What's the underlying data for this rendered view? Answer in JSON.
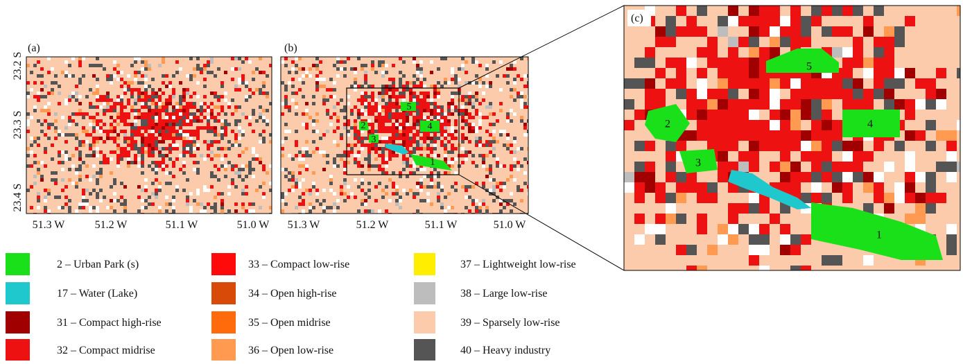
{
  "panels": [
    {
      "label": "(a)",
      "x_ticks": [
        "51.3 W",
        "51.2 W",
        "51.1 W",
        "51.0 W"
      ],
      "y_ticks": [
        "23.2 S",
        "23.3 S",
        "23.4 S"
      ]
    },
    {
      "label": "(b)",
      "x_ticks": [
        "51.3 W",
        "51.2 W",
        "51.1 W",
        "51.0 W"
      ],
      "park_labels": [
        "1",
        "2",
        "3",
        "4",
        "5"
      ]
    },
    {
      "label": "(c)",
      "park_labels": [
        "1",
        "2",
        "3",
        "4",
        "5"
      ]
    }
  ],
  "legend": [
    {
      "label": "2 – Urban Park (s)",
      "color": "#19e019"
    },
    {
      "label": "17 – Water (Lake)",
      "color": "#1fc8cc"
    },
    {
      "label": "31 – Compact high-rise",
      "color": "#a00000"
    },
    {
      "label": "32 – Compact midrise",
      "color": "#ee1111"
    },
    {
      "label": "33 – Compact low-rise",
      "color": "#ff0a0a"
    },
    {
      "label": "34 – Open high-rise",
      "color": "#d84a08"
    },
    {
      "label": "35 – Open midrise",
      "color": "#ff6a0a"
    },
    {
      "label": "36 – Open low-rise",
      "color": "#ff9a50"
    },
    {
      "label": "37 – Lightweight low-rise",
      "color": "#ffee00"
    },
    {
      "label": "38 – Large low-rise",
      "color": "#bdbdbd"
    },
    {
      "label": "39 – Sparsely low-rise",
      "color": "#fccbab"
    },
    {
      "label": "40 – Heavy industry",
      "color": "#555555"
    }
  ]
}
